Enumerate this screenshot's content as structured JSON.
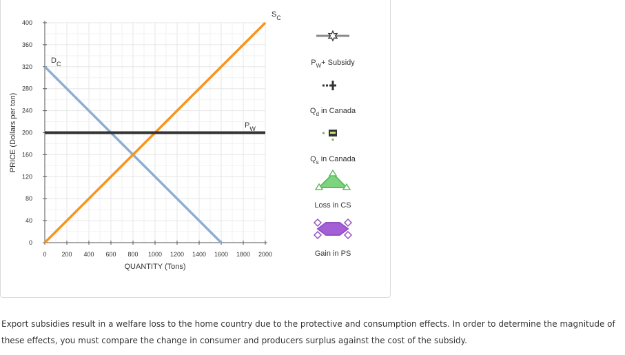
{
  "chart_data": {
    "type": "line",
    "xlabel": "QUANTITY (Tons)",
    "ylabel": "PRICE (Dollars per ton)",
    "xlim": [
      0,
      2000
    ],
    "ylim": [
      0,
      400
    ],
    "x_ticks": [
      0,
      200,
      400,
      600,
      800,
      1000,
      1200,
      1400,
      1600,
      1800,
      2000
    ],
    "y_ticks": [
      0,
      40,
      80,
      120,
      160,
      200,
      240,
      280,
      320,
      360,
      400
    ],
    "grid": true,
    "series": [
      {
        "name": "D",
        "sub": "C",
        "color": "#8aafd3",
        "points": [
          [
            0,
            320
          ],
          [
            1600,
            0
          ]
        ]
      },
      {
        "name": "S",
        "sub": "C",
        "color": "#f7941d",
        "points": [
          [
            0,
            0
          ],
          [
            2000,
            400
          ]
        ]
      },
      {
        "name": "P",
        "sub": "W",
        "color": "#333333",
        "points": [
          [
            0,
            200
          ],
          [
            2000,
            200
          ]
        ]
      }
    ]
  },
  "legend": [
    {
      "label": "P",
      "sub": "W",
      "suffix": "+ Subsidy",
      "color": "#555555",
      "icon": "star-line-icon"
    },
    {
      "label": "Q",
      "sub": "d",
      "suffix": " in Canada",
      "color": "#333333",
      "icon": "plus-marker-icon"
    },
    {
      "label": "Q",
      "sub": "s",
      "suffix": " in Canada",
      "color": "#8ca860",
      "icon": "square-marker-icon"
    },
    {
      "label": "Loss in CS",
      "sub": "",
      "suffix": "",
      "color": "#7ed47e",
      "icon": "triangle-area-icon"
    },
    {
      "label": "Gain in PS",
      "sub": "",
      "suffix": "",
      "color": "#a55fd6",
      "icon": "diamond-area-icon"
    }
  ],
  "footer": {
    "text": "Export subsidies result in a welfare loss to the home country due to the protective and consumption effects. In order to determine the magnitude of these effects, you must compare the change in consumer and producers surplus against the cost of the subsidy."
  }
}
